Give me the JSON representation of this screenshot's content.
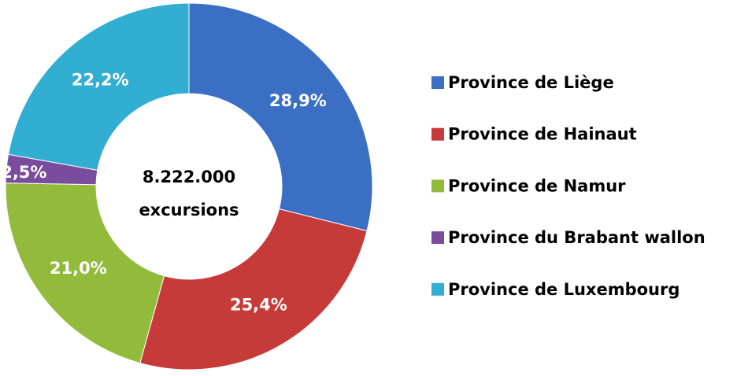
{
  "chart_data": {
    "type": "donut",
    "center_text": [
      "8.222.000",
      "excursions"
    ],
    "categories": [
      "Province de Liège",
      "Province de Hainaut",
      "Province de Namur",
      "Province du Brabant wallon",
      "Province de Luxembourg"
    ],
    "values": [
      28.9,
      25.4,
      21.0,
      2.5,
      22.2
    ],
    "value_labels": [
      "28,9%",
      "25,4%",
      "21,0%",
      "2,5%",
      "22,2%"
    ],
    "colors": [
      "#3a6fc4",
      "#c63a39",
      "#93bb3b",
      "#7a4c9e",
      "#31aed2"
    ],
    "legend": "right"
  }
}
